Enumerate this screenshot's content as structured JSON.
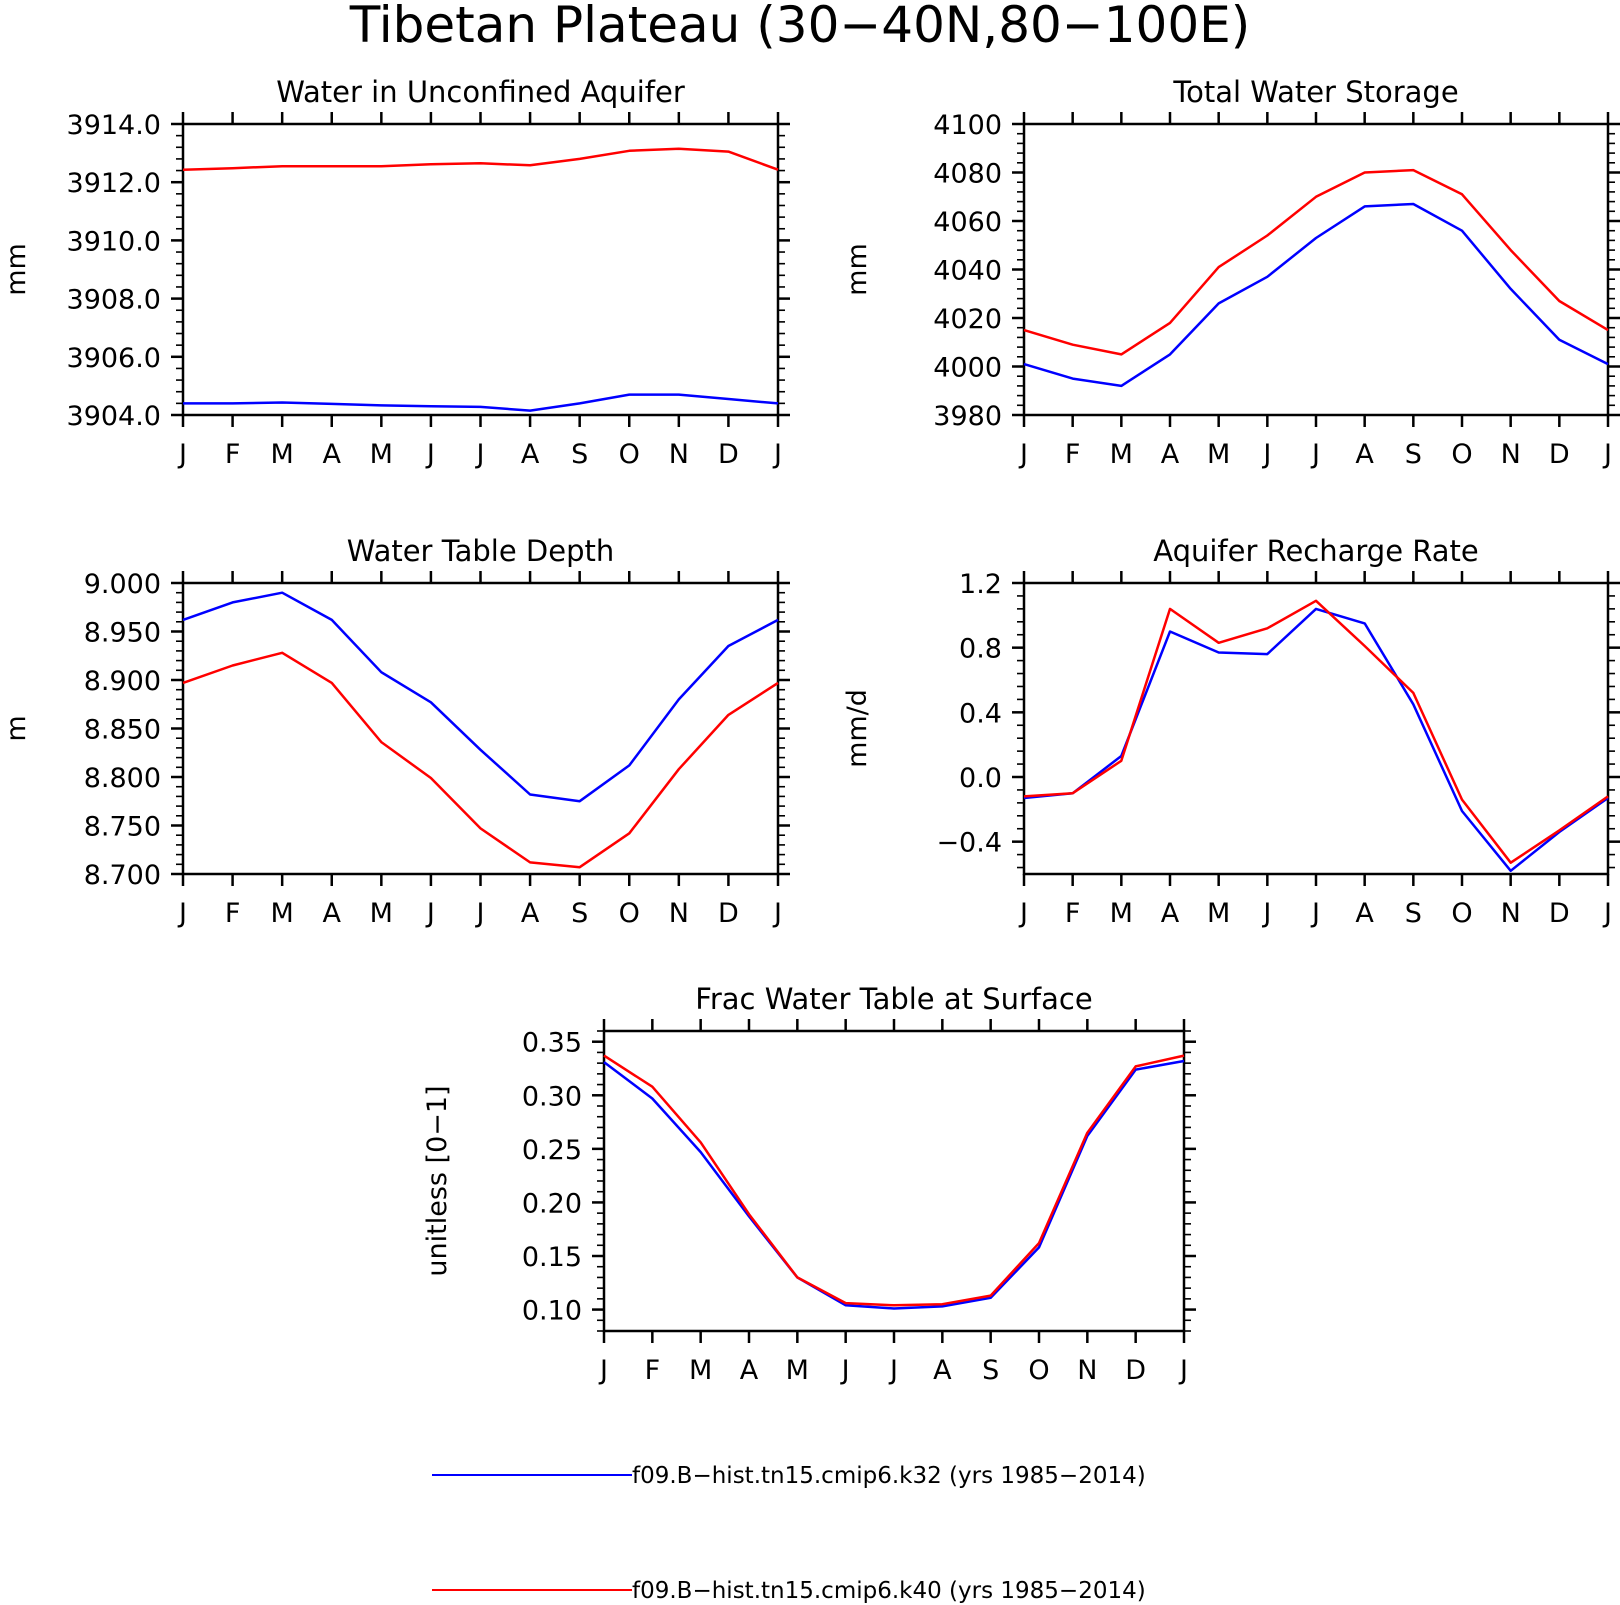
{
  "figure": {
    "title": "Tibetan Plateau (30−40N,80−100E)",
    "month_labels": [
      "J",
      "F",
      "M",
      "A",
      "M",
      "J",
      "J",
      "A",
      "S",
      "O",
      "N",
      "D",
      "J"
    ]
  },
  "legend": [
    {
      "label": "f09.B−hist.tn15.cmip6.k32 (yrs 1985−2014)",
      "color": "#0000ff"
    },
    {
      "label": "f09.B−hist.tn15.cmip6.k40 (yrs 1985−2014)",
      "color": "#ff0000"
    }
  ],
  "chart_data": [
    {
      "type": "line",
      "title": "Water in Unconfined Aquifer",
      "ylabel": "mm",
      "ylim": [
        3904.0,
        3914.0
      ],
      "yticks": [
        3904.0,
        3906.0,
        3908.0,
        3910.0,
        3912.0,
        3914.0
      ],
      "ytick_labels": [
        "3904.0",
        "3906.0",
        "3908.0",
        "3910.0",
        "3912.0",
        "3914.0"
      ],
      "series": [
        {
          "color": "#0000ff",
          "values": [
            3904.4,
            3904.4,
            3904.43,
            3904.38,
            3904.33,
            3904.3,
            3904.28,
            3904.15,
            3904.4,
            3904.7,
            3904.7,
            3904.55,
            3904.4
          ]
        },
        {
          "color": "#ff0000",
          "values": [
            3912.43,
            3912.48,
            3912.55,
            3912.55,
            3912.55,
            3912.62,
            3912.65,
            3912.58,
            3912.8,
            3913.08,
            3913.15,
            3913.05,
            3912.43
          ]
        }
      ]
    },
    {
      "type": "line",
      "title": "Total Water Storage",
      "ylabel": "mm",
      "ylim": [
        3980,
        4100
      ],
      "yticks": [
        3980,
        4000,
        4020,
        4040,
        4060,
        4080,
        4100
      ],
      "ytick_labels": [
        "3980",
        "4000",
        "4020",
        "4040",
        "4060",
        "4080",
        "4100"
      ],
      "series": [
        {
          "color": "#0000ff",
          "values": [
            4001,
            3995,
            3992,
            4005,
            4026,
            4037,
            4053,
            4066,
            4067,
            4056,
            4032,
            4011,
            4001
          ]
        },
        {
          "color": "#ff0000",
          "values": [
            4015,
            4009,
            4005,
            4018,
            4041,
            4054,
            4070,
            4080,
            4081,
            4071,
            4048,
            4027,
            4015
          ]
        }
      ]
    },
    {
      "type": "line",
      "title": "Water Table Depth",
      "ylabel": "m",
      "ylim": [
        8.7,
        9.0
      ],
      "yticks": [
        8.7,
        8.75,
        8.8,
        8.85,
        8.9,
        8.95,
        9.0
      ],
      "ytick_labels": [
        "8.700",
        "8.750",
        "8.800",
        "8.850",
        "8.900",
        "8.950",
        "9.000"
      ],
      "series": [
        {
          "color": "#0000ff",
          "values": [
            8.962,
            8.98,
            8.99,
            8.962,
            8.908,
            8.877,
            8.828,
            8.782,
            8.775,
            8.812,
            8.88,
            8.935,
            8.962
          ]
        },
        {
          "color": "#ff0000",
          "values": [
            8.897,
            8.915,
            8.928,
            8.897,
            8.836,
            8.799,
            8.747,
            8.712,
            8.707,
            8.742,
            8.808,
            8.864,
            8.897
          ]
        }
      ]
    },
    {
      "type": "line",
      "title": "Aquifer Recharge Rate",
      "ylabel": "mm/d",
      "ylim": [
        -0.6,
        1.2
      ],
      "yticks": [
        -0.4,
        0.0,
        0.4,
        0.8,
        1.2
      ],
      "ytick_labels": [
        "−0.4",
        "0.0",
        "0.4",
        "0.8",
        "1.2"
      ],
      "series": [
        {
          "color": "#0000ff",
          "values": [
            -0.13,
            -0.1,
            0.13,
            0.9,
            0.77,
            0.76,
            1.04,
            0.95,
            0.45,
            -0.21,
            -0.58,
            -0.34,
            -0.13
          ]
        },
        {
          "color": "#ff0000",
          "values": [
            -0.12,
            -0.1,
            0.1,
            1.04,
            0.83,
            0.92,
            1.09,
            0.81,
            0.52,
            -0.14,
            -0.53,
            -0.33,
            -0.12
          ]
        }
      ]
    },
    {
      "type": "line",
      "title": "Frac Water Table at Surface",
      "ylabel": "unitless [0−1]",
      "ylim": [
        0.08,
        0.36
      ],
      "yticks": [
        0.1,
        0.15,
        0.2,
        0.25,
        0.3,
        0.35
      ],
      "ytick_labels": [
        "0.10",
        "0.15",
        "0.20",
        "0.25",
        "0.30",
        "0.35"
      ],
      "series": [
        {
          "color": "#0000ff",
          "values": [
            0.331,
            0.297,
            0.247,
            0.187,
            0.13,
            0.104,
            0.101,
            0.103,
            0.111,
            0.158,
            0.262,
            0.324,
            0.332
          ]
        },
        {
          "color": "#ff0000",
          "values": [
            0.337,
            0.308,
            0.256,
            0.189,
            0.13,
            0.106,
            0.104,
            0.105,
            0.113,
            0.162,
            0.265,
            0.327,
            0.337
          ]
        }
      ]
    }
  ]
}
